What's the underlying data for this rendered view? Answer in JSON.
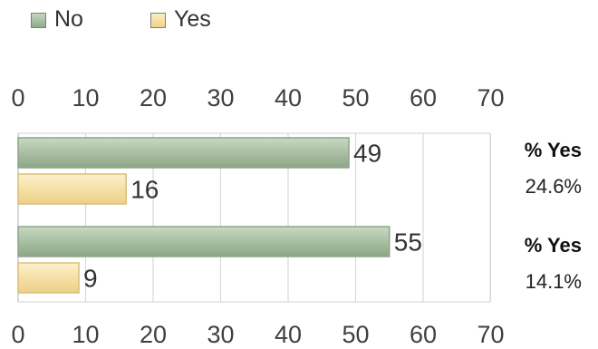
{
  "chart_data": {
    "type": "bar",
    "orientation": "horizontal",
    "title": "",
    "xlabel": "",
    "ylabel": "",
    "xlim": [
      0,
      70
    ],
    "ticks": [
      "0",
      "10",
      "20",
      "30",
      "40",
      "50",
      "60",
      "70"
    ],
    "grid": true,
    "legend_position": "top-left",
    "categories": [
      "",
      ""
    ],
    "series": [
      {
        "name": "No",
        "values": [
          49,
          55
        ],
        "color": "#a9bfa2"
      },
      {
        "name": "Yes",
        "values": [
          16,
          9
        ],
        "color": "#f5e0a6"
      }
    ],
    "annotations": [
      {
        "title": "% Yes",
        "value": "24.6%"
      },
      {
        "title": "% Yes",
        "value": "14.1%"
      }
    ]
  }
}
